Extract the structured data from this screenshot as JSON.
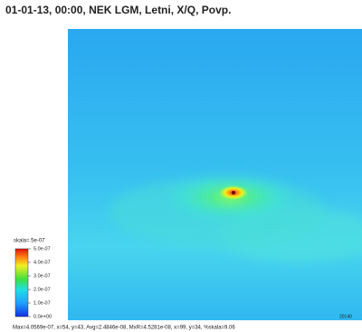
{
  "chart_data": {
    "type": "heatmap",
    "title": "01-01-13, 00:00, NEK LGM, Letni, X/Q, Povp.",
    "colorbar_label": "skala= 5e-07",
    "clim": [
      0,
      5e-07
    ],
    "cticks": [
      {
        "value": 0,
        "label": "0.0e+00"
      },
      {
        "value": 1e-07,
        "label": "1.0e-07"
      },
      {
        "value": 2e-07,
        "label": "2.0e-07"
      },
      {
        "value": 3e-07,
        "label": "3.0e-07"
      },
      {
        "value": 4e-07,
        "label": "4.0e-07"
      },
      {
        "value": 5e-07,
        "label": "5.0e-07"
      }
    ],
    "stamp": "20140",
    "footer": "Max=4.0569e-07, x=54, y=43, Avg=2.4846e-08, MxR=4.5281e-08, x=99, y=34, %skala=9.06"
  }
}
